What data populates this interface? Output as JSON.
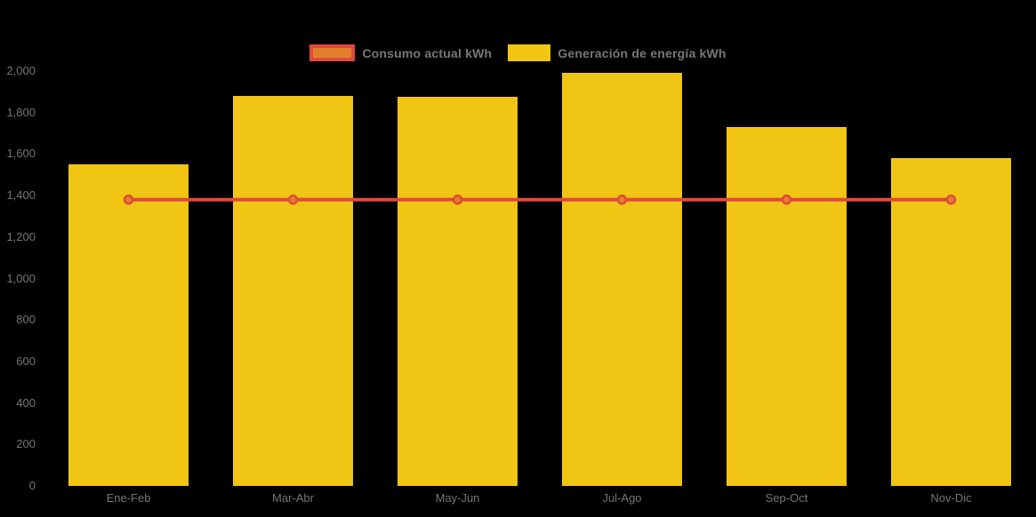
{
  "chart_data": {
    "type": "bar",
    "categories": [
      "Ene-Feb",
      "Mar-Abr",
      "May-Jun",
      "Jul-Ago",
      "Sep-Oct",
      "Nov-Dic"
    ],
    "series": [
      {
        "name": "Consumo actual kWh",
        "type": "line",
        "color": "#E0493B",
        "marker_color": "#E2802A",
        "values": [
          1380,
          1380,
          1380,
          1380,
          1380,
          1380
        ]
      },
      {
        "name": "Generación de energía kWh",
        "type": "bar",
        "color": "#F0C513",
        "values": [
          1550,
          1880,
          1875,
          1990,
          1730,
          1580
        ]
      }
    ],
    "title": "",
    "xlabel": "",
    "ylabel": "",
    "ylim": [
      0,
      2000
    ],
    "ytick_step": 200,
    "ytick_labels": [
      "0",
      "200",
      "400",
      "600",
      "800",
      "1,000",
      "1,200",
      "1,400",
      "1,600",
      "1,800",
      "2,000"
    ],
    "grid": false,
    "legend_position": "top",
    "background_color": "#000000",
    "axis_text_color": "#757575",
    "legend_text_color": "#777777"
  }
}
